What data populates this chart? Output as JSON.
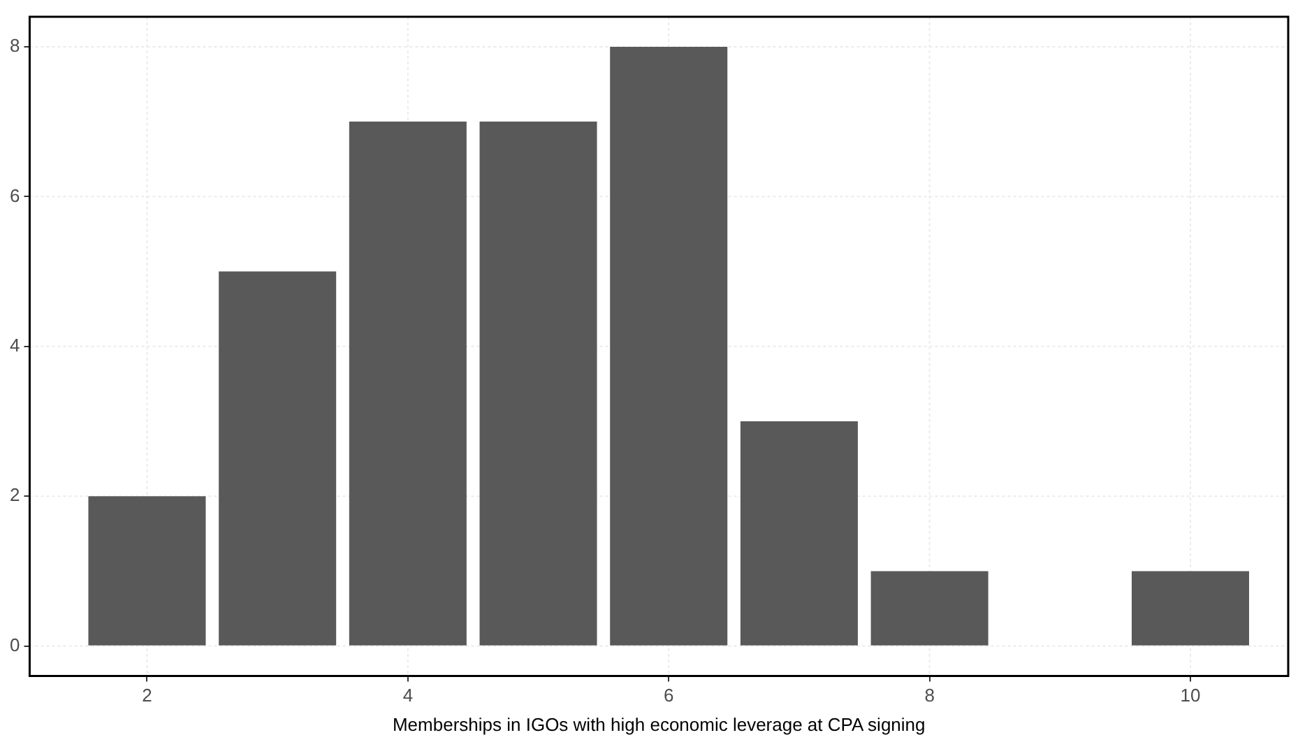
{
  "chart_data": {
    "type": "bar",
    "xlabel": "Memberships in IGOs with high economic leverage at CPA signing",
    "x": [
      2,
      3,
      4,
      5,
      6,
      7,
      8,
      10
    ],
    "values": [
      2,
      5,
      7,
      7,
      8,
      3,
      1,
      1
    ],
    "color": "#595959",
    "xlim": [
      1.1,
      10.75
    ],
    "xticks": [
      2,
      4,
      6,
      8,
      10
    ],
    "ylim": [
      -0.4,
      8.4
    ],
    "yticks": [
      0,
      2,
      4,
      6,
      8
    ],
    "grid": true,
    "legend": false
  }
}
